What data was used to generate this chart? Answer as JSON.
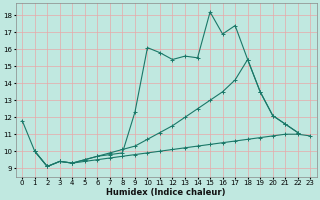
{
  "bg_color": "#c0e8e0",
  "grid_color": "#e8a8a8",
  "line_color": "#1a7868",
  "xlabel": "Humidex (Indice chaleur)",
  "ylim": [
    8.5,
    18.7
  ],
  "xlim": [
    -0.5,
    23.5
  ],
  "yticks": [
    9,
    10,
    11,
    12,
    13,
    14,
    15,
    16,
    17,
    18
  ],
  "xticks": [
    0,
    1,
    2,
    3,
    4,
    5,
    6,
    7,
    8,
    9,
    10,
    11,
    12,
    13,
    14,
    15,
    16,
    17,
    18,
    19,
    20,
    21,
    22,
    23
  ],
  "series": [
    {
      "x": [
        0,
        1,
        2,
        3,
        4,
        5,
        6,
        7,
        8,
        9,
        10,
        11,
        12,
        13,
        14,
        15,
        16,
        17,
        18,
        19,
        20,
        21,
        22
      ],
      "y": [
        11.8,
        10.0,
        9.1,
        9.4,
        9.3,
        9.5,
        9.7,
        9.8,
        9.9,
        12.3,
        16.1,
        15.8,
        15.4,
        15.6,
        15.5,
        18.2,
        16.9,
        17.4,
        15.4,
        13.5,
        12.1,
        11.6,
        11.1
      ]
    },
    {
      "x": [
        1,
        2,
        3,
        4,
        5,
        6,
        7,
        8,
        9,
        10,
        11,
        12,
        13,
        14,
        15,
        16,
        17,
        18,
        19,
        20,
        21,
        22,
        23
      ],
      "y": [
        10.0,
        9.1,
        9.4,
        9.3,
        9.4,
        9.5,
        9.6,
        9.7,
        9.8,
        9.9,
        10.0,
        10.1,
        10.2,
        10.3,
        10.4,
        10.5,
        10.6,
        10.7,
        10.8,
        10.9,
        11.0,
        11.0,
        10.9
      ]
    },
    {
      "x": [
        1,
        2,
        3,
        4,
        5,
        6,
        7,
        8,
        9,
        10,
        11,
        12,
        13,
        14,
        15,
        16,
        17,
        18,
        19,
        20,
        21,
        22
      ],
      "y": [
        10.0,
        9.1,
        9.4,
        9.3,
        9.5,
        9.7,
        9.9,
        10.1,
        10.3,
        10.7,
        11.1,
        11.5,
        12.0,
        12.5,
        13.0,
        13.5,
        14.2,
        15.4,
        13.5,
        12.1,
        11.6,
        11.1
      ]
    }
  ]
}
